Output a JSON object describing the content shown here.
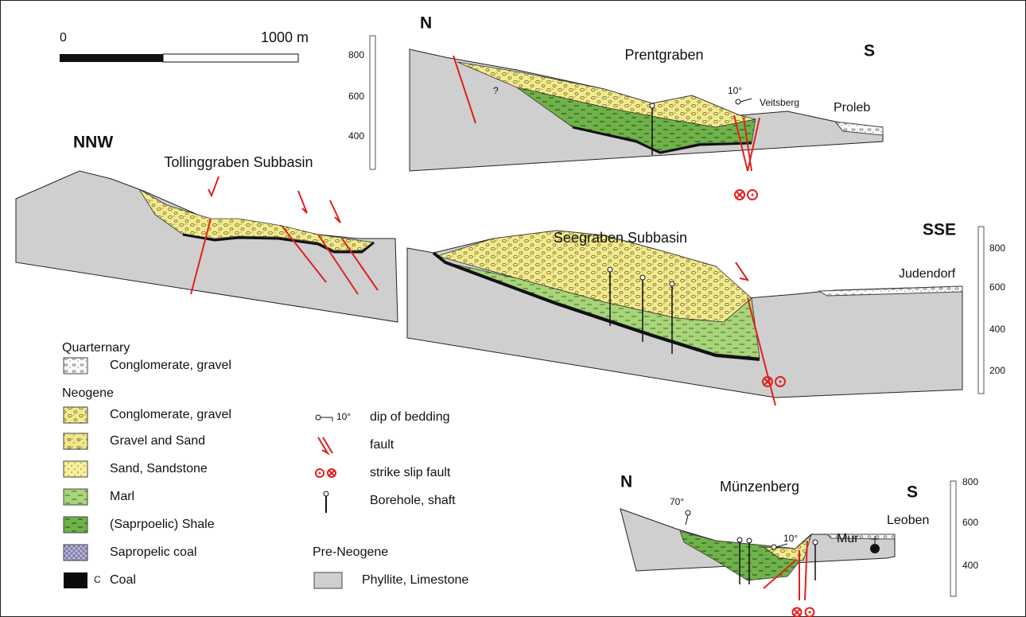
{
  "scale_bar": {
    "start": "0",
    "end": "1000 m"
  },
  "sections": [
    {
      "title": "Prentgraben",
      "left": "N",
      "right": "S",
      "labels": [
        "?",
        "10°",
        "Veitsberg",
        "Proleb"
      ],
      "elevation_ticks": [
        800,
        600,
        400
      ]
    },
    {
      "title": "Tollinggraben Subbasin",
      "left": "NNW"
    },
    {
      "title": "Seegraben Subbasin",
      "right": "SSE",
      "labels": [
        "Judendorf"
      ],
      "elevation_ticks": [
        800,
        600,
        400,
        200
      ]
    },
    {
      "title": "Münzenberg",
      "left": "N",
      "right": "S",
      "labels": [
        "70°",
        "10°",
        "Mur",
        "Leoben"
      ],
      "elevation_ticks": [
        800,
        600,
        400
      ]
    }
  ],
  "legend": {
    "groups": [
      {
        "title": "Quarternary",
        "items": [
          "Conglomerate, gravel"
        ]
      },
      {
        "title": "Neogene",
        "items": [
          "Conglomerate, gravel",
          "Gravel and Sand",
          "Sand, Sandstone",
          "Marl",
          "(Saprpoelic) Shale",
          "Sapropelic coal",
          "Coal"
        ]
      },
      {
        "title": "Pre-Neogene",
        "items": [
          "Phyllite, Limestone"
        ]
      }
    ],
    "coal_marker": "C"
  },
  "symbols": [
    {
      "sample": "10°",
      "label": "dip of bedding"
    },
    {
      "label": "fault"
    },
    {
      "label": "strike slip fault"
    },
    {
      "label": "Borehole, shaft"
    }
  ]
}
